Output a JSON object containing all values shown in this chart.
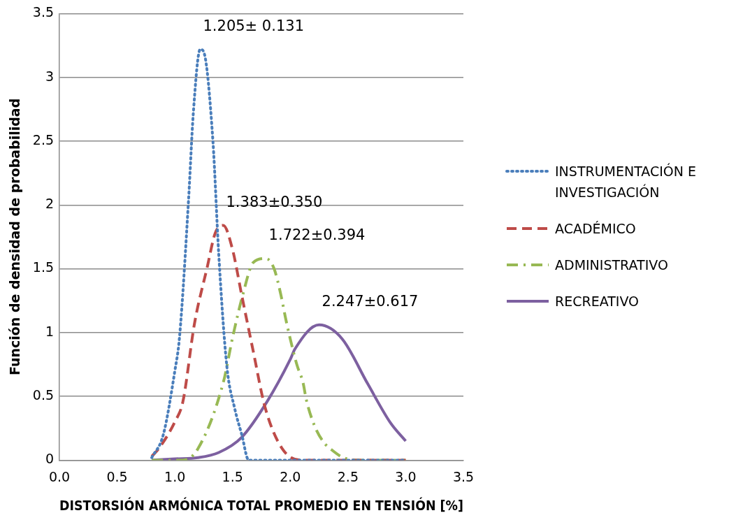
{
  "chart_data": {
    "type": "line",
    "xlabel": "DISTORSIÓN ARMÓNICA TOTAL PROMEDIO EN TENSIÓN [%]",
    "ylabel": "Función de densidad de probabilidad",
    "xlim": [
      0,
      3.5
    ],
    "xticks": [
      {
        "value": 0,
        "label": "0.0"
      },
      {
        "value": 0.5,
        "label": "0.5"
      },
      {
        "value": 1,
        "label": "1.0"
      },
      {
        "value": 1.5,
        "label": "1.5"
      },
      {
        "value": 2,
        "label": "2.0"
      },
      {
        "value": 2.5,
        "label": "2.5"
      },
      {
        "value": 3,
        "label": "3.0"
      },
      {
        "value": 3.5,
        "label": "3.5"
      }
    ],
    "ylim": [
      0,
      3.5
    ],
    "yticks": [
      0,
      0.5,
      1,
      1.5,
      2,
      2.5,
      3,
      3.5
    ],
    "grid": "y",
    "legend": "right",
    "series": [
      {
        "name": "INSTRUMENTACIÓN E INVESTIGACIÓN",
        "color": "#4a7ebb",
        "line_style": "dotted",
        "x": [
          0.8,
          0.9,
          1.0,
          1.04,
          1.12,
          1.16,
          1.22,
          1.25,
          1.33,
          1.38,
          1.45,
          1.52,
          1.58,
          1.64,
          1.8,
          2.0,
          2.2,
          2.4,
          2.6,
          2.8,
          3.0
        ],
        "values": [
          0.02,
          0.2,
          0.7,
          0.96,
          2.06,
          2.72,
          3.22,
          3.2,
          2.5,
          1.62,
          0.74,
          0.4,
          0.2,
          0,
          0,
          0,
          0,
          0,
          0,
          0,
          0
        ]
      },
      {
        "name": "ACADÉMICO",
        "color": "#be4b48",
        "line_style": "dashed",
        "x": [
          0.8,
          0.86,
          1.0,
          1.07,
          1.17,
          1.28,
          1.35,
          1.42,
          1.5,
          1.58,
          1.68,
          1.78,
          1.93,
          2.1,
          2.3,
          2.5,
          2.7,
          3.0
        ],
        "values": [
          0.03,
          0.09,
          0.3,
          0.46,
          1.07,
          1.51,
          1.78,
          1.84,
          1.65,
          1.29,
          0.85,
          0.42,
          0.09,
          0,
          0,
          0,
          0,
          0
        ]
      },
      {
        "name": "ADMINISTRATIVO",
        "color": "#98b954",
        "line_style": "dashdot",
        "x": [
          0.8,
          1.0,
          1.07,
          1.2,
          1.42,
          1.5,
          1.59,
          1.68,
          1.79,
          1.86,
          1.92,
          1.96,
          2.0,
          2.06,
          2.11,
          2.14,
          2.21,
          2.29,
          2.36,
          2.46,
          2.6,
          2.8,
          3.0
        ],
        "values": [
          0,
          0,
          0,
          0.09,
          0.61,
          0.96,
          1.3,
          1.55,
          1.58,
          1.5,
          1.29,
          1.11,
          0.95,
          0.74,
          0.61,
          0.47,
          0.27,
          0.14,
          0.08,
          0.02,
          0,
          0,
          0
        ]
      },
      {
        "name": "RECREATIVO",
        "color": "#7d60a0",
        "line_style": "solid",
        "x": [
          0.8,
          1.0,
          1.2,
          1.38,
          1.58,
          1.8,
          2.0,
          2.04,
          2.25,
          2.45,
          2.67,
          2.87,
          3.0
        ],
        "values": [
          0,
          0.01,
          0.02,
          0.06,
          0.18,
          0.46,
          0.79,
          0.87,
          1.06,
          0.95,
          0.6,
          0.29,
          0.15
        ]
      }
    ],
    "annotations": [
      "1.205± 0.131",
      "1.383±0.350",
      "1.722±0.394",
      "2.247±0.617"
    ]
  }
}
